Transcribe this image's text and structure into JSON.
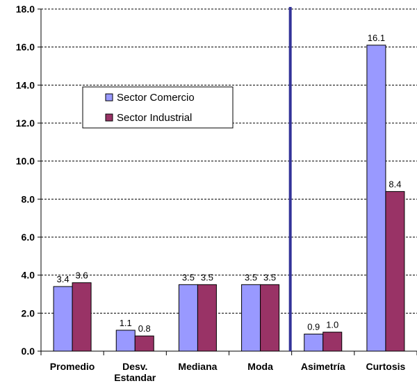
{
  "chart_data": {
    "type": "bar",
    "categories": [
      [
        "Promedio"
      ],
      [
        "Desv.",
        "Estandar"
      ],
      [
        "Mediana"
      ],
      [
        "Moda"
      ],
      [
        "Asimetría"
      ],
      [
        "Curtosis"
      ]
    ],
    "series": [
      {
        "name": "Sector Comercio",
        "color": "#9999ff",
        "values": [
          3.4,
          1.1,
          3.5,
          3.5,
          0.9,
          16.1
        ],
        "labels": [
          "3.4",
          "1.1",
          "3.5",
          "3.5",
          "0.9",
          "16.1"
        ]
      },
      {
        "name": "Sector Industrial",
        "color": "#993366",
        "values": [
          3.6,
          0.8,
          3.5,
          3.5,
          1.0,
          8.4
        ],
        "labels": [
          "3.6",
          "0.8",
          "3.5",
          "3.5",
          "1.0",
          "8.4"
        ]
      }
    ],
    "ylim": [
      0,
      18
    ],
    "yticks": [
      "0.0",
      "2.0",
      "4.0",
      "6.0",
      "8.0",
      "10.0",
      "12.0",
      "14.0",
      "16.0",
      "18.0"
    ],
    "grid": "horizontal dashed",
    "legend": "upper-left inside plot",
    "separator": {
      "after_category_index": 3,
      "color": "#333399"
    },
    "title": "",
    "xlabel": "",
    "ylabel": ""
  }
}
